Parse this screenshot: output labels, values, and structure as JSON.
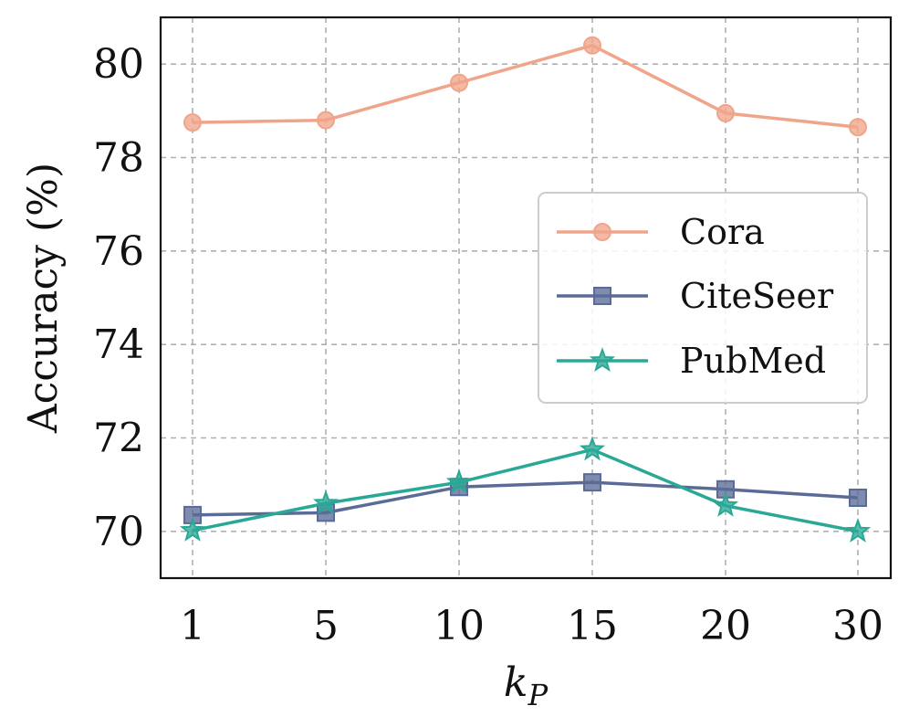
{
  "chart_data": {
    "type": "line",
    "categories": [
      "1",
      "5",
      "10",
      "15",
      "20",
      "30"
    ],
    "xlabel_base": "k",
    "xlabel_sub": "P",
    "ylabel": "Accuracy (%)",
    "ylim": [
      69.0,
      81.0
    ],
    "yticks": [
      70,
      72,
      74,
      76,
      78,
      80
    ],
    "grid": true,
    "legend_position": "center-right",
    "series": [
      {
        "name": "Cora",
        "marker": "circle",
        "color": "#f0a58a",
        "values": [
          78.75,
          78.8,
          79.6,
          80.4,
          78.95,
          78.65
        ]
      },
      {
        "name": "CiteSeer",
        "marker": "square",
        "color": "#5b6b97",
        "values": [
          70.35,
          70.4,
          70.95,
          71.05,
          70.9,
          70.72
        ]
      },
      {
        "name": "PubMed",
        "marker": "star",
        "color": "#2aa896",
        "values": [
          70.02,
          70.6,
          71.05,
          71.75,
          70.55,
          70.0
        ]
      }
    ]
  }
}
